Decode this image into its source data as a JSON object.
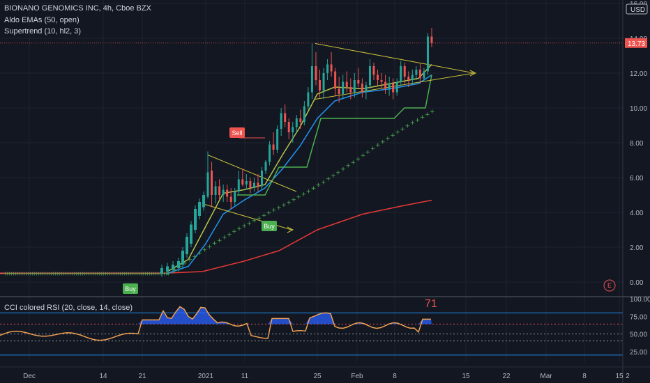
{
  "header": {
    "symbol_line": "BIONANO GENOMICS INC, 4h, Cboe BZX",
    "indicator1": "Aldo EMAs (50, open)",
    "indicator2": "Supertrend (10, hl2, 3)"
  },
  "currency_label": "USD",
  "last_price_label": "13.73",
  "earnings_marker": "E",
  "rsi_panel": {
    "title": "CCI colored RSI (20, close, 14, close)",
    "value_label": "71",
    "yticks": [
      "100.00",
      "75.00",
      "50.00",
      "25.00"
    ]
  },
  "colors": {
    "background": "#131722",
    "up": "#26a69a",
    "down": "#ef5350",
    "ema_fast": "#2196f3",
    "ema_mid": "#b6c54a",
    "ema_slow": "#e53935",
    "supertrend": "#4caf50",
    "trendline": "#c9c23a",
    "rsi_fill": "#2962ff",
    "rsi_line": "#f0a050",
    "band_line": "#1e88e5"
  },
  "chart_data": {
    "type": "candlestick",
    "price_axis": {
      "ylim": [
        -0.8,
        16.2
      ],
      "ticks": [
        "16.00",
        "14.00",
        "12.00",
        "10.00",
        "8.00",
        "6.00",
        "4.00",
        "2.00",
        "0.00"
      ]
    },
    "x_ticks": [
      "Dec",
      "14",
      "21",
      "2021",
      "11",
      "25",
      "Feb",
      "8",
      "15",
      "22",
      "Mar",
      "8",
      "15",
      "2"
    ],
    "last_price": 13.73,
    "candles": [
      {
        "o": 4.9,
        "h": 7.5,
        "l": 4.8,
        "c": 6.3
      },
      {
        "o": 6.4,
        "h": 6.9,
        "l": 4.3,
        "c": 5.0
      },
      {
        "o": 5.0,
        "h": 5.8,
        "l": 4.5,
        "c": 5.5
      },
      {
        "o": 5.5,
        "h": 5.9,
        "l": 4.7,
        "c": 5.0
      },
      {
        "o": 5.0,
        "h": 5.6,
        "l": 4.6,
        "c": 5.3
      },
      {
        "o": 5.3,
        "h": 5.6,
        "l": 4.6,
        "c": 4.9
      },
      {
        "o": 4.9,
        "h": 5.4,
        "l": 4.2,
        "c": 4.6
      },
      {
        "o": 4.6,
        "h": 5.4,
        "l": 4.4,
        "c": 5.2
      },
      {
        "o": 5.2,
        "h": 6.4,
        "l": 5.0,
        "c": 5.9
      },
      {
        "o": 5.9,
        "h": 6.5,
        "l": 5.5,
        "c": 5.6
      },
      {
        "o": 5.6,
        "h": 6.2,
        "l": 5.3,
        "c": 5.8
      },
      {
        "o": 5.8,
        "h": 6.0,
        "l": 5.1,
        "c": 5.4
      },
      {
        "o": 5.4,
        "h": 6.0,
        "l": 5.2,
        "c": 5.7
      },
      {
        "o": 5.7,
        "h": 6.2,
        "l": 5.2,
        "c": 5.5
      },
      {
        "o": 5.5,
        "h": 6.6,
        "l": 5.3,
        "c": 6.4
      },
      {
        "o": 6.4,
        "h": 7.0,
        "l": 6.2,
        "c": 6.9
      },
      {
        "o": 6.9,
        "h": 8.1,
        "l": 6.7,
        "c": 7.9
      },
      {
        "o": 7.9,
        "h": 8.6,
        "l": 7.3,
        "c": 7.6
      },
      {
        "o": 7.6,
        "h": 9.0,
        "l": 7.4,
        "c": 8.8
      },
      {
        "o": 8.8,
        "h": 10.0,
        "l": 8.4,
        "c": 9.7
      },
      {
        "o": 9.7,
        "h": 10.2,
        "l": 8.9,
        "c": 9.2
      },
      {
        "o": 9.2,
        "h": 9.4,
        "l": 8.2,
        "c": 8.6
      },
      {
        "o": 8.6,
        "h": 9.2,
        "l": 8.0,
        "c": 8.9
      },
      {
        "o": 8.9,
        "h": 9.6,
        "l": 8.6,
        "c": 9.4
      },
      {
        "o": 9.4,
        "h": 9.9,
        "l": 8.8,
        "c": 9.2
      },
      {
        "o": 9.2,
        "h": 10.4,
        "l": 9.0,
        "c": 10.1
      },
      {
        "o": 10.1,
        "h": 11.2,
        "l": 9.9,
        "c": 10.9
      },
      {
        "o": 10.9,
        "h": 13.7,
        "l": 10.5,
        "c": 12.4
      },
      {
        "o": 12.4,
        "h": 13.2,
        "l": 11.3,
        "c": 11.6
      },
      {
        "o": 11.6,
        "h": 12.2,
        "l": 10.6,
        "c": 11.0
      },
      {
        "o": 11.0,
        "h": 12.3,
        "l": 10.5,
        "c": 12.0
      },
      {
        "o": 12.0,
        "h": 12.8,
        "l": 11.6,
        "c": 12.5
      },
      {
        "o": 12.5,
        "h": 13.2,
        "l": 11.8,
        "c": 12.1
      },
      {
        "o": 12.1,
        "h": 12.3,
        "l": 10.7,
        "c": 11.1
      },
      {
        "o": 11.1,
        "h": 11.8,
        "l": 10.3,
        "c": 10.8
      },
      {
        "o": 10.8,
        "h": 11.9,
        "l": 10.5,
        "c": 11.5
      },
      {
        "o": 11.5,
        "h": 12.1,
        "l": 10.9,
        "c": 11.2
      },
      {
        "o": 11.2,
        "h": 11.7,
        "l": 10.5,
        "c": 10.9
      },
      {
        "o": 10.9,
        "h": 12.0,
        "l": 10.6,
        "c": 11.6
      },
      {
        "o": 11.6,
        "h": 12.3,
        "l": 11.2,
        "c": 11.4
      },
      {
        "o": 11.4,
        "h": 11.7,
        "l": 10.6,
        "c": 10.9
      },
      {
        "o": 10.9,
        "h": 11.5,
        "l": 10.5,
        "c": 11.3
      },
      {
        "o": 11.3,
        "h": 12.8,
        "l": 11.1,
        "c": 12.4
      },
      {
        "o": 12.4,
        "h": 12.6,
        "l": 11.6,
        "c": 11.9
      },
      {
        "o": 11.9,
        "h": 12.2,
        "l": 11.3,
        "c": 11.6
      },
      {
        "o": 11.6,
        "h": 12.0,
        "l": 11.1,
        "c": 11.5
      },
      {
        "o": 11.5,
        "h": 11.9,
        "l": 10.8,
        "c": 11.1
      },
      {
        "o": 11.1,
        "h": 11.8,
        "l": 10.7,
        "c": 11.4
      },
      {
        "o": 11.4,
        "h": 11.7,
        "l": 10.5,
        "c": 10.9
      },
      {
        "o": 10.9,
        "h": 11.7,
        "l": 10.7,
        "c": 11.5
      },
      {
        "o": 11.5,
        "h": 12.7,
        "l": 11.3,
        "c": 12.4
      },
      {
        "o": 12.4,
        "h": 12.6,
        "l": 11.4,
        "c": 11.8
      },
      {
        "o": 11.8,
        "h": 12.1,
        "l": 11.2,
        "c": 11.6
      },
      {
        "o": 11.6,
        "h": 12.2,
        "l": 11.3,
        "c": 11.9
      },
      {
        "o": 11.9,
        "h": 12.4,
        "l": 11.6,
        "c": 12.2
      },
      {
        "o": 12.2,
        "h": 12.6,
        "l": 11.4,
        "c": 11.7
      },
      {
        "o": 11.7,
        "h": 12.3,
        "l": 11.5,
        "c": 12.1
      },
      {
        "o": 12.1,
        "h": 14.3,
        "l": 11.9,
        "c": 14.1
      },
      {
        "o": 14.1,
        "h": 14.6,
        "l": 13.5,
        "c": 13.73
      }
    ],
    "signals": [
      {
        "label": "Sell",
        "price": 8.0
      },
      {
        "label": "Buy",
        "price": 3.6
      },
      {
        "label": "Buy",
        "price": 0.0
      }
    ],
    "rsi": {
      "ylim": [
        10,
        102
      ],
      "levels": [
        80,
        64,
        50,
        40,
        20
      ],
      "last": 71
    }
  }
}
